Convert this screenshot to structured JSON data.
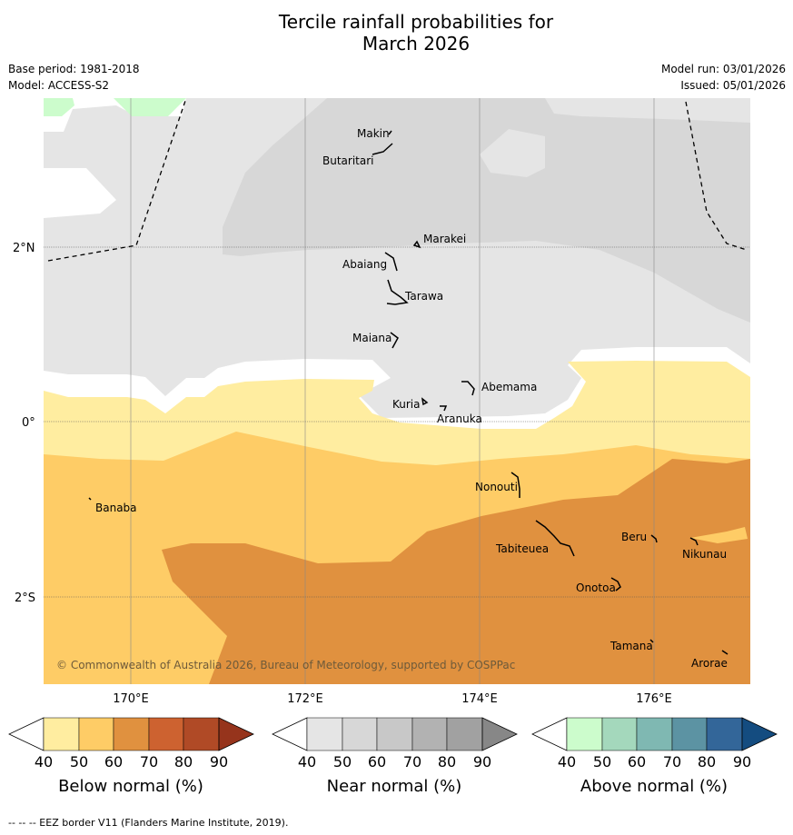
{
  "title_line1": "Tercile rainfall probabilities for",
  "title_line2": "March 2026",
  "base_period": "Base period: 1981-2018",
  "model": "Model: ACCESS-S2",
  "model_run": "Model run: 03/01/2026",
  "issued": "Issued: 05/01/2026",
  "lat_labels": [
    "2°N",
    "0°",
    "2°S"
  ],
  "lon_labels": [
    "170°E",
    "172°E",
    "174°E",
    "176°E"
  ],
  "places": [
    "Makin",
    "Butaritari",
    "Marakei",
    "Abaiang",
    "Tarawa",
    "Maiana",
    "Abemama",
    "Kuria",
    "Aranuka",
    "Nonouti",
    "Banaba",
    "Tabiteuea",
    "Beru",
    "Nikunau",
    "Onotoa",
    "Tamana",
    "Arorae"
  ],
  "copyright": "© Commonwealth of Australia 2026, Bureau of Meteorology, supported by COSPPac",
  "colorbars": [
    {
      "label": "Below normal (%)",
      "ticks": [
        "40",
        "50",
        "60",
        "70",
        "80",
        "90"
      ],
      "colors": [
        "#ffeda0",
        "#fecc66",
        "#e0913f",
        "#cd6230",
        "#b04a26",
        "#96341c"
      ]
    },
    {
      "label": "Near normal (%)",
      "ticks": [
        "40",
        "50",
        "60",
        "70",
        "80",
        "90"
      ],
      "colors": [
        "#e5e5e5",
        "#d7d7d7",
        "#c8c8c8",
        "#b2b2b2",
        "#a1a1a1",
        "#878787"
      ]
    },
    {
      "label": "Above normal (%)",
      "ticks": [
        "40",
        "50",
        "60",
        "70",
        "80",
        "90"
      ],
      "colors": [
        "#ccfccc",
        "#a4d8bc",
        "#7fb8b2",
        "#5c93a3",
        "#336699",
        "#144c80"
      ]
    }
  ],
  "footnote": "--  --  -- EEZ border V11 (Flanders Marine Institute, 2019)."
}
